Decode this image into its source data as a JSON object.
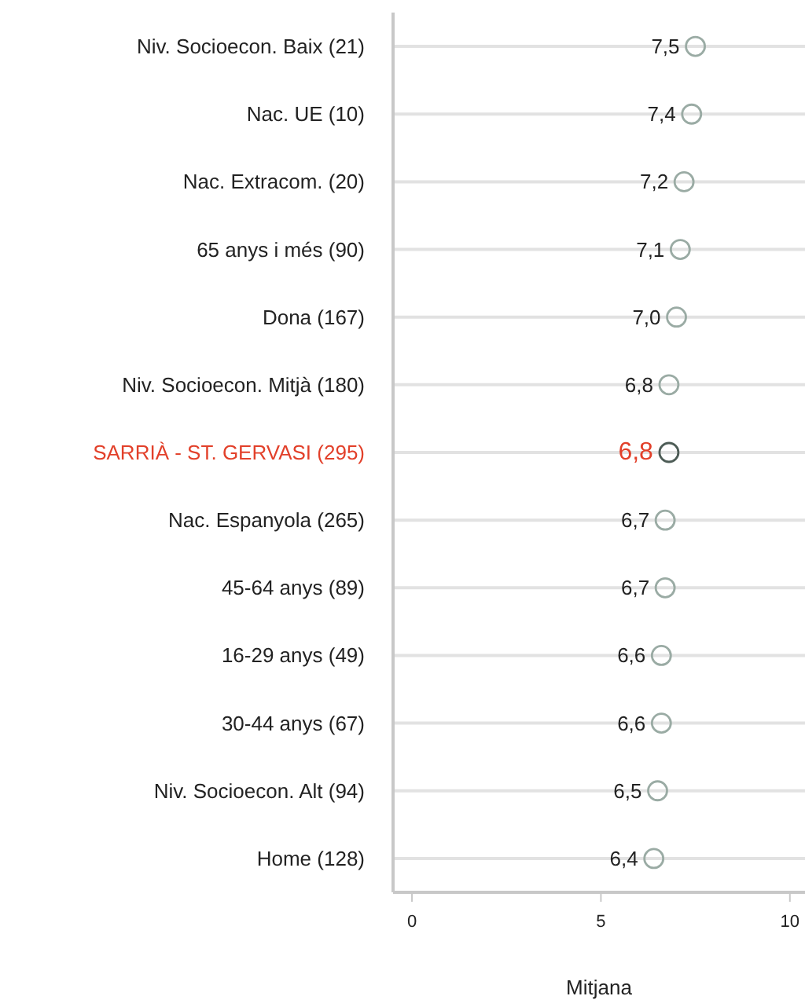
{
  "chart_data": {
    "type": "scatter",
    "orientation": "horizontal",
    "xlabel": "Mitjana",
    "categories": [
      "Niv. Socioecon. Baix (21)",
      "Nac. UE (10)",
      "Nac. Extracom. (20)",
      "65 anys i més (90)",
      "Dona (167)",
      "Niv. Socioecon. Mitjà (180)",
      "SARRIÀ - ST. GERVASI (295)",
      "Nac. Espanyola (265)",
      "45-64 anys (89)",
      "16-29 anys (49)",
      "30-44 anys (67)",
      "Niv. Socioecon. Alt (94)",
      "Home (128)"
    ],
    "values": [
      7.5,
      7.4,
      7.2,
      7.1,
      7.0,
      6.8,
      6.8,
      6.7,
      6.7,
      6.6,
      6.6,
      6.5,
      6.4
    ],
    "value_labels": [
      "7,5",
      "7,4",
      "7,2",
      "7,1",
      "7,0",
      "6,8",
      "6,8",
      "6,7",
      "6,7",
      "6,6",
      "6,6",
      "6,5",
      "6,4"
    ],
    "color": "#9aaba4",
    "colors": [
      "#9aaba4",
      "#9aaba4",
      "#9aaba4",
      "#9aaba4",
      "#9aaba4",
      "#9aaba4",
      "#4d5c56",
      "#9aaba4",
      "#9aaba4",
      "#9aaba4",
      "#9aaba4",
      "#9aaba4",
      "#9aaba4"
    ],
    "marker": "circle",
    "grid": "y",
    "xlim": [
      -0.5,
      10.4
    ],
    "xticks": [
      0,
      5,
      10
    ]
  }
}
